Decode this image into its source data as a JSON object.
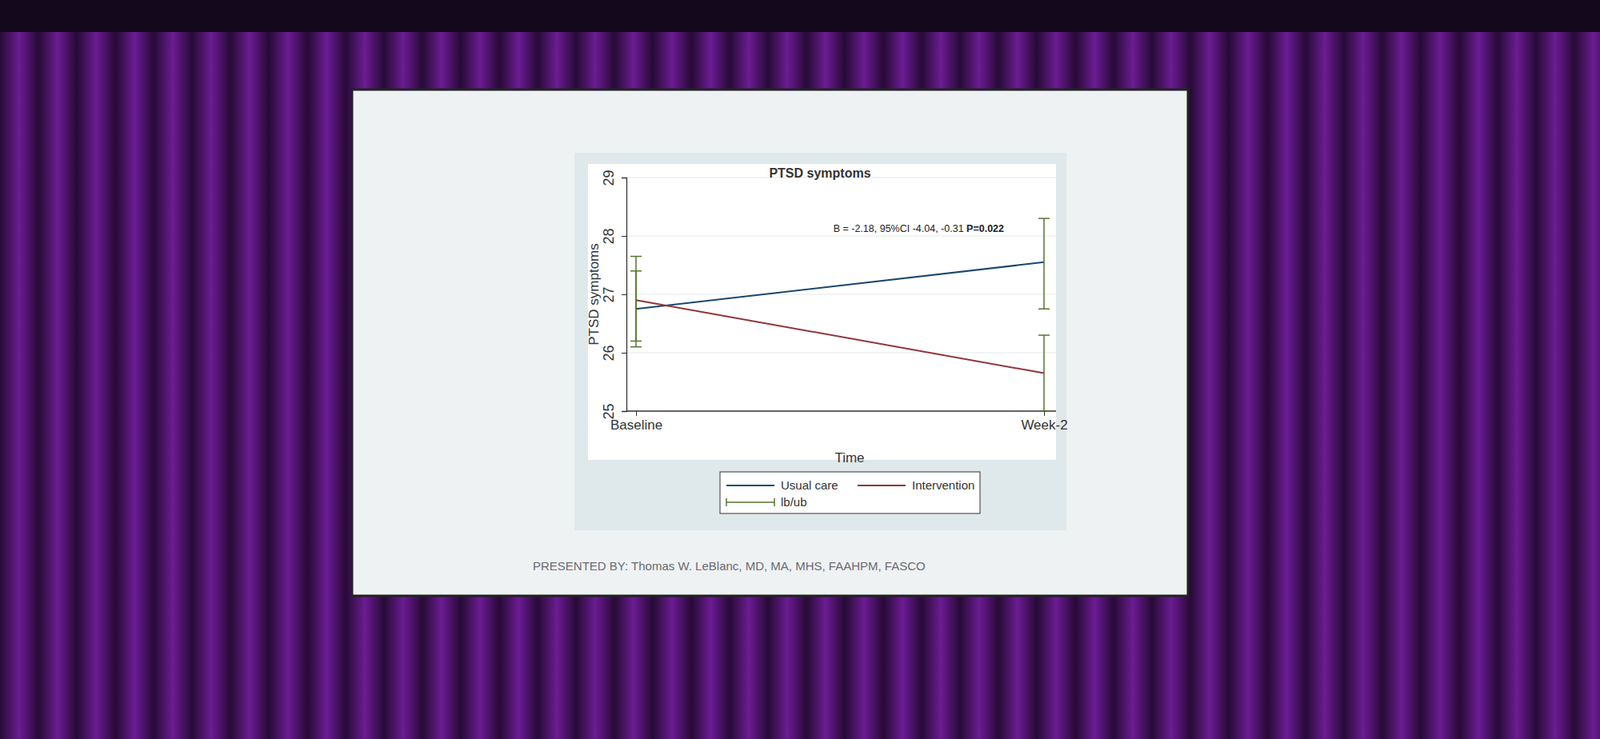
{
  "chart_data": {
    "type": "line",
    "title": "PTSD symptoms",
    "x_label": "Time",
    "y_label": "PTSD symptoms",
    "categories": [
      "Baseline",
      "Week-2"
    ],
    "series": [
      {
        "name": "Usual care",
        "color": "#1a476f",
        "values": [
          26.75,
          27.55
        ],
        "lower": [
          26.1,
          26.75
        ],
        "upper": [
          27.4,
          28.3
        ]
      },
      {
        "name": "Intervention",
        "color": "#90353b",
        "values": [
          26.9,
          25.65
        ],
        "lower": [
          26.2,
          25.0
        ],
        "upper": [
          27.65,
          26.3
        ]
      }
    ],
    "error_bars": {
      "name": "lb/ub",
      "color": "#55752f"
    },
    "ylim": [
      25,
      29
    ],
    "yticks": [
      25,
      26,
      27,
      28,
      29
    ],
    "grid": true,
    "legend": "bottom",
    "annotation": [
      "B = -2.18, 95%CI -4.04, -0.31",
      "P=0.022"
    ],
    "footer": "PRESENTED BY: Thomas W. LeBlanc, MD, MA, MHS, FAAHPM, FASCO"
  }
}
